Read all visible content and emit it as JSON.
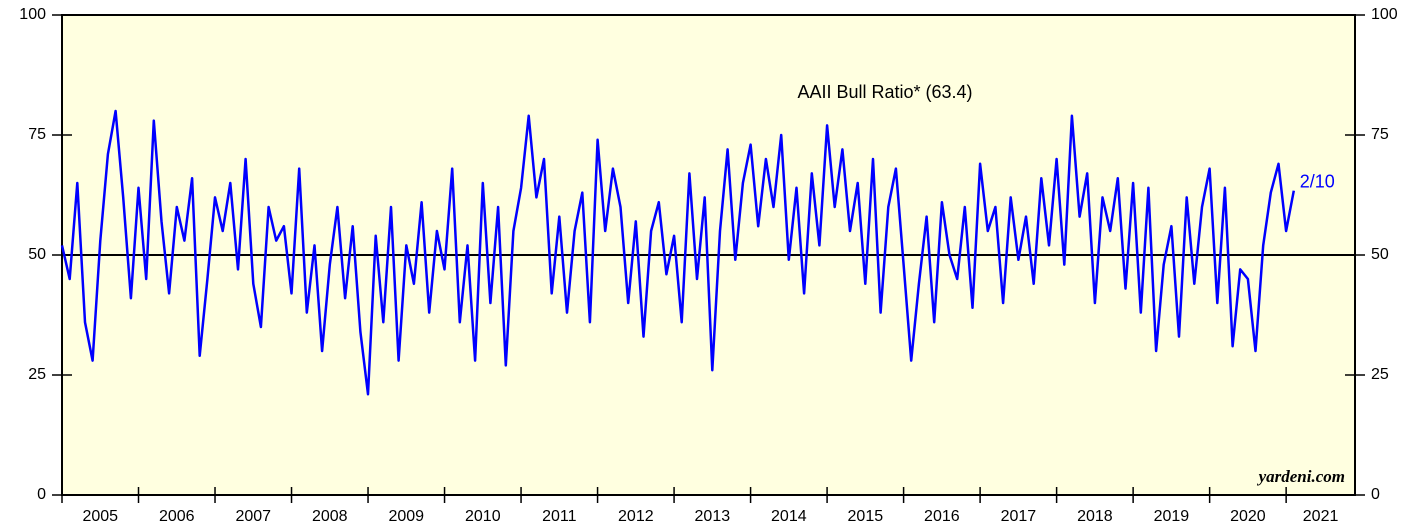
{
  "chart_data": {
    "type": "line",
    "annotation": "AAII Bull Ratio* (63.4)",
    "end_label": "2/10",
    "source": "yardeni.com",
    "xlim": [
      2005,
      2021.9
    ],
    "xticks": [
      2005,
      2006,
      2007,
      2008,
      2009,
      2010,
      2011,
      2012,
      2013,
      2014,
      2015,
      2016,
      2017,
      2018,
      2019,
      2020,
      2021
    ],
    "ylim": [
      0,
      100
    ],
    "yticks": [
      0,
      25,
      50,
      75,
      100
    ],
    "y2lim": [
      0,
      100
    ],
    "y2ticks": [
      0,
      25,
      50,
      75,
      100
    ],
    "hline": 50,
    "x": [
      2005.0,
      2005.1,
      2005.2,
      2005.3,
      2005.4,
      2005.5,
      2005.6,
      2005.7,
      2005.8,
      2005.9,
      2006.0,
      2006.1,
      2006.2,
      2006.3,
      2006.4,
      2006.5,
      2006.6,
      2006.7,
      2006.8,
      2006.9,
      2007.0,
      2007.1,
      2007.2,
      2007.3,
      2007.4,
      2007.5,
      2007.6,
      2007.7,
      2007.8,
      2007.9,
      2008.0,
      2008.1,
      2008.2,
      2008.3,
      2008.4,
      2008.5,
      2008.6,
      2008.7,
      2008.8,
      2008.9,
      2009.0,
      2009.1,
      2009.2,
      2009.3,
      2009.4,
      2009.5,
      2009.6,
      2009.7,
      2009.8,
      2009.9,
      2010.0,
      2010.1,
      2010.2,
      2010.3,
      2010.4,
      2010.5,
      2010.6,
      2010.7,
      2010.8,
      2010.9,
      2011.0,
      2011.1,
      2011.2,
      2011.3,
      2011.4,
      2011.5,
      2011.6,
      2011.7,
      2011.8,
      2011.9,
      2012.0,
      2012.1,
      2012.2,
      2012.3,
      2012.4,
      2012.5,
      2012.6,
      2012.7,
      2012.8,
      2012.9,
      2013.0,
      2013.1,
      2013.2,
      2013.3,
      2013.4,
      2013.5,
      2013.6,
      2013.7,
      2013.8,
      2013.9,
      2014.0,
      2014.1,
      2014.2,
      2014.3,
      2014.4,
      2014.5,
      2014.6,
      2014.7,
      2014.8,
      2014.9,
      2015.0,
      2015.1,
      2015.2,
      2015.3,
      2015.4,
      2015.5,
      2015.6,
      2015.7,
      2015.8,
      2015.9,
      2016.0,
      2016.1,
      2016.2,
      2016.3,
      2016.4,
      2016.5,
      2016.6,
      2016.7,
      2016.8,
      2016.9,
      2017.0,
      2017.1,
      2017.2,
      2017.3,
      2017.4,
      2017.5,
      2017.6,
      2017.7,
      2017.8,
      2017.9,
      2018.0,
      2018.1,
      2018.2,
      2018.3,
      2018.4,
      2018.5,
      2018.6,
      2018.7,
      2018.8,
      2018.9,
      2019.0,
      2019.1,
      2019.2,
      2019.3,
      2019.4,
      2019.5,
      2019.6,
      2019.7,
      2019.8,
      2019.9,
      2020.0,
      2020.1,
      2020.2,
      2020.3,
      2020.4,
      2020.5,
      2020.6,
      2020.7,
      2020.8,
      2020.9,
      2021.0,
      2021.1
    ],
    "series": [
      {
        "color": "#0000ff",
        "values": [
          52,
          45,
          65,
          36,
          28,
          53,
          71,
          80,
          62,
          41,
          64,
          45,
          78,
          57,
          42,
          60,
          53,
          66,
          29,
          45,
          62,
          55,
          65,
          47,
          70,
          44,
          35,
          60,
          53,
          56,
          42,
          68,
          38,
          52,
          30,
          48,
          60,
          41,
          56,
          34,
          21,
          54,
          36,
          60,
          28,
          52,
          44,
          61,
          38,
          55,
          47,
          68,
          36,
          52,
          28,
          65,
          40,
          60,
          27,
          55,
          64,
          79,
          62,
          70,
          42,
          58,
          38,
          55,
          63,
          36,
          74,
          55,
          68,
          60,
          40,
          57,
          33,
          55,
          61,
          46,
          54,
          36,
          67,
          45,
          62,
          26,
          55,
          72,
          49,
          65,
          73,
          56,
          70,
          60,
          75,
          49,
          64,
          42,
          67,
          52,
          77,
          60,
          72,
          55,
          65,
          44,
          70,
          38,
          60,
          68,
          48,
          28,
          44,
          58,
          36,
          61,
          50,
          45,
          60,
          39,
          69,
          55,
          60,
          40,
          62,
          49,
          58,
          44,
          66,
          52,
          70,
          48,
          79,
          58,
          67,
          40,
          62,
          55,
          66,
          43,
          65,
          38,
          64,
          30,
          48,
          56,
          33,
          62,
          44,
          60,
          68,
          40,
          64,
          31,
          47,
          45,
          30,
          52,
          63,
          69,
          55,
          63.4
        ]
      }
    ]
  }
}
